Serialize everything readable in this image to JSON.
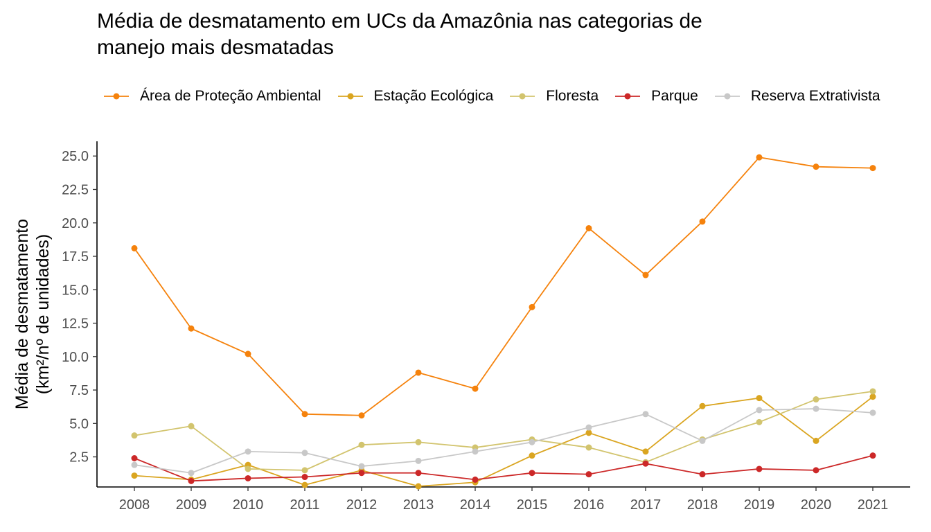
{
  "chart_data": {
    "type": "line",
    "title": "Média de desmatamento em UCs da Amazônia nas categorias de manejo mais desmatadas",
    "title_lines": [
      "Média de desmatamento em UCs da Amazônia nas categorias de",
      "manejo mais desmatadas"
    ],
    "xlabel": "",
    "ylabel_lines": [
      "Média de desmatamento",
      "(km²/nº de unidades)"
    ],
    "x": [
      2008,
      2009,
      2010,
      2011,
      2012,
      2013,
      2014,
      2015,
      2016,
      2017,
      2018,
      2019,
      2020,
      2021
    ],
    "xtick_labels": [
      "2008",
      "2009",
      "2010",
      "2011",
      "2012",
      "2013",
      "2014",
      "2015",
      "2016",
      "2017",
      "2018",
      "2019",
      "2020",
      "2021"
    ],
    "ylim": [
      0.25,
      26.1
    ],
    "yticks": [
      2.5,
      5.0,
      7.5,
      10.0,
      12.5,
      15.0,
      17.5,
      20.0,
      22.5,
      25.0
    ],
    "ytick_labels": [
      "2.5",
      "5.0",
      "7.5",
      "10.0",
      "12.5",
      "15.0",
      "17.5",
      "20.0",
      "22.5",
      "25.0"
    ],
    "legend_position": "top",
    "grid": false,
    "series": [
      {
        "name": "Área de Proteção Ambiental",
        "color": "#F5820C",
        "values": [
          18.1,
          12.1,
          10.2,
          5.7,
          5.6,
          8.8,
          7.6,
          13.7,
          19.6,
          16.1,
          20.1,
          24.9,
          24.2,
          24.1
        ]
      },
      {
        "name": "Estação Ecológica",
        "color": "#DAA520",
        "values": [
          1.1,
          0.8,
          1.9,
          0.4,
          1.5,
          0.3,
          0.6,
          2.6,
          4.3,
          2.9,
          6.3,
          6.9,
          3.7,
          7.0
        ]
      },
      {
        "name": "Floresta",
        "color": "#D2C46E",
        "values": [
          4.1,
          4.8,
          1.6,
          1.5,
          3.4,
          3.6,
          3.2,
          3.8,
          3.2,
          2.1,
          3.8,
          5.1,
          6.8,
          7.4
        ]
      },
      {
        "name": "Parque",
        "color": "#CC2828",
        "values": [
          2.4,
          0.7,
          0.9,
          1.0,
          1.3,
          1.3,
          0.8,
          1.3,
          1.2,
          2.0,
          1.2,
          1.6,
          1.5,
          2.6
        ]
      },
      {
        "name": "Reserva Extrativista",
        "color": "#C8C8C8",
        "values": [
          1.9,
          1.3,
          2.9,
          2.8,
          1.8,
          2.2,
          2.9,
          3.6,
          4.7,
          5.7,
          3.7,
          6.0,
          6.1,
          5.8
        ]
      }
    ]
  }
}
